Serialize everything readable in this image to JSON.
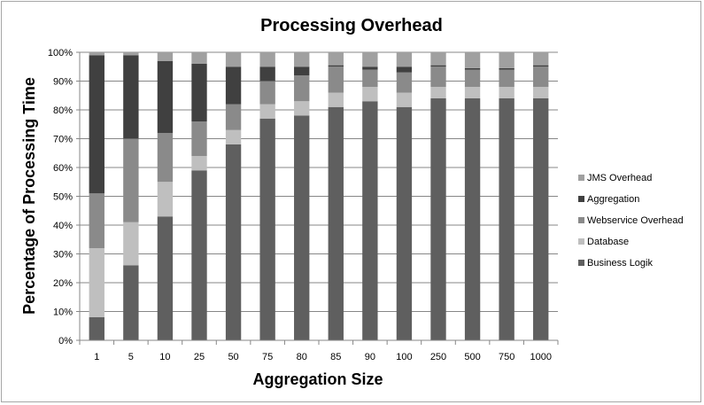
{
  "chart_data": {
    "type": "bar",
    "stacked": true,
    "normalized_percent": true,
    "title": "Processing Overhead",
    "xlabel": "Aggregation Size",
    "ylabel": "Percentage of Processing Time",
    "ylim": [
      0,
      100
    ],
    "yticks": [
      "0%",
      "10%",
      "20%",
      "30%",
      "40%",
      "50%",
      "60%",
      "70%",
      "80%",
      "90%",
      "100%"
    ],
    "categories": [
      "1",
      "5",
      "10",
      "25",
      "50",
      "75",
      "80",
      "85",
      "90",
      "100",
      "250",
      "500",
      "750",
      "1000"
    ],
    "grid": true,
    "legend_position": "right",
    "series": [
      {
        "name": "Business Logik",
        "color": "#5f5f5f",
        "values": [
          8,
          26,
          43,
          59,
          68,
          77,
          78,
          81,
          83,
          81,
          84,
          84,
          84,
          84
        ]
      },
      {
        "name": "Database",
        "color": "#bfbfbf",
        "values": [
          24,
          15,
          12,
          5,
          5,
          5,
          5,
          5,
          5,
          5,
          4,
          4,
          4,
          4
        ]
      },
      {
        "name": "Webservice Overhead",
        "color": "#8a8a8a",
        "values": [
          19,
          29,
          17,
          12,
          9,
          8,
          9,
          9,
          6,
          7,
          7,
          6,
          6,
          7
        ]
      },
      {
        "name": "Aggregation",
        "color": "#404040",
        "values": [
          48,
          29,
          25,
          20,
          13,
          5,
          3,
          0.5,
          1,
          2,
          0.5,
          0.5,
          0.5,
          0.5
        ]
      },
      {
        "name": "JMS Overhead",
        "color": "#a0a0a0",
        "values": [
          1,
          1,
          3,
          4,
          5,
          5,
          5,
          4.5,
          5,
          5,
          4.5,
          5.5,
          5.5,
          4.5
        ]
      }
    ]
  }
}
